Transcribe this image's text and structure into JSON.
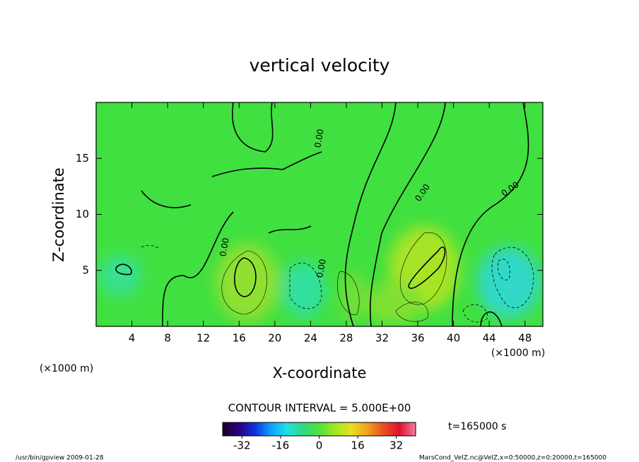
{
  "chart_data": {
    "type": "contour",
    "title": "vertical velocity",
    "xlabel": "X-coordinate",
    "ylabel": "Z-coordinate",
    "x_unit_label": "(×1000 m)",
    "y_unit_label": "(×1000 m)",
    "xlim": [
      0,
      50
    ],
    "ylim": [
      0,
      20
    ],
    "xticks": [
      4,
      8,
      12,
      16,
      20,
      24,
      28,
      32,
      36,
      40,
      44,
      48
    ],
    "yticks": [
      5,
      10,
      15
    ],
    "contour_interval": "CONTOUR INTERVAL = 5.000E+00",
    "contour_labels": [
      {
        "value": 0,
        "label": "0.00"
      },
      {
        "value": 0,
        "label": "0.00"
      },
      {
        "value": 0,
        "label": "0.00"
      },
      {
        "value": 0,
        "label": "0.00"
      },
      {
        "value": 0,
        "label": "0.00"
      }
    ],
    "time_label": "t=165000 s",
    "colorbar": {
      "lim": [
        -40,
        40
      ],
      "ticks": [
        -32,
        -16,
        0,
        16,
        32
      ],
      "colors": [
        "#1a0020",
        "#2a0080",
        "#1030e0",
        "#10a0ff",
        "#20e0e0",
        "#30d880",
        "#50e040",
        "#a0e820",
        "#e8e020",
        "#f0a020",
        "#e85020",
        "#e01030",
        "#f080a0"
      ]
    },
    "footer_left": "/usr/bin/gpview  2009-01-28",
    "footer_right": "MarsCond_VelZ.nc@VelZ,x=0:50000,z=0:20000,t=165000"
  }
}
